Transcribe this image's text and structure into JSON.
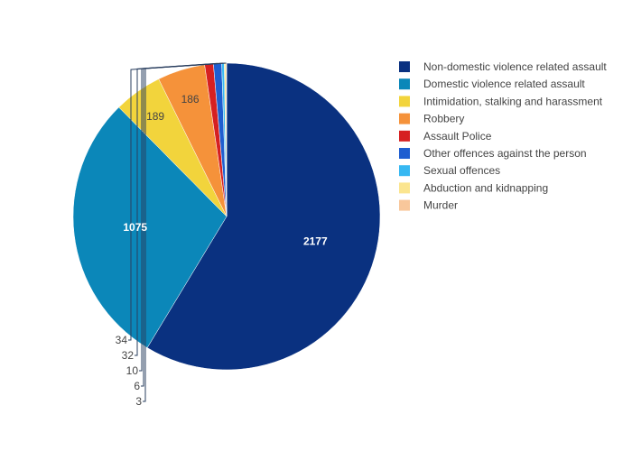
{
  "chart_data": {
    "type": "pie",
    "title": "",
    "categories": [
      "Non-domestic violence related assault",
      "Domestic violence related assault",
      "Intimidation, stalking and harassment",
      "Robbery",
      "Assault Police",
      "Other offences against the person",
      "Sexual offences",
      "Abduction and kidnapping",
      "Murder"
    ],
    "values": [
      2177,
      1075,
      189,
      186,
      34,
      32,
      10,
      6,
      3
    ],
    "colors": [
      "#0a3180",
      "#0b87b9",
      "#f2d43c",
      "#f5923a",
      "#d62021",
      "#1f5ed0",
      "#37b8f2",
      "#fbe58f",
      "#f8c79b"
    ],
    "labels": [
      "2177",
      "1075",
      "189",
      "186",
      "34",
      "32",
      "10",
      "6",
      "3"
    ],
    "legend_position": "top-right"
  }
}
